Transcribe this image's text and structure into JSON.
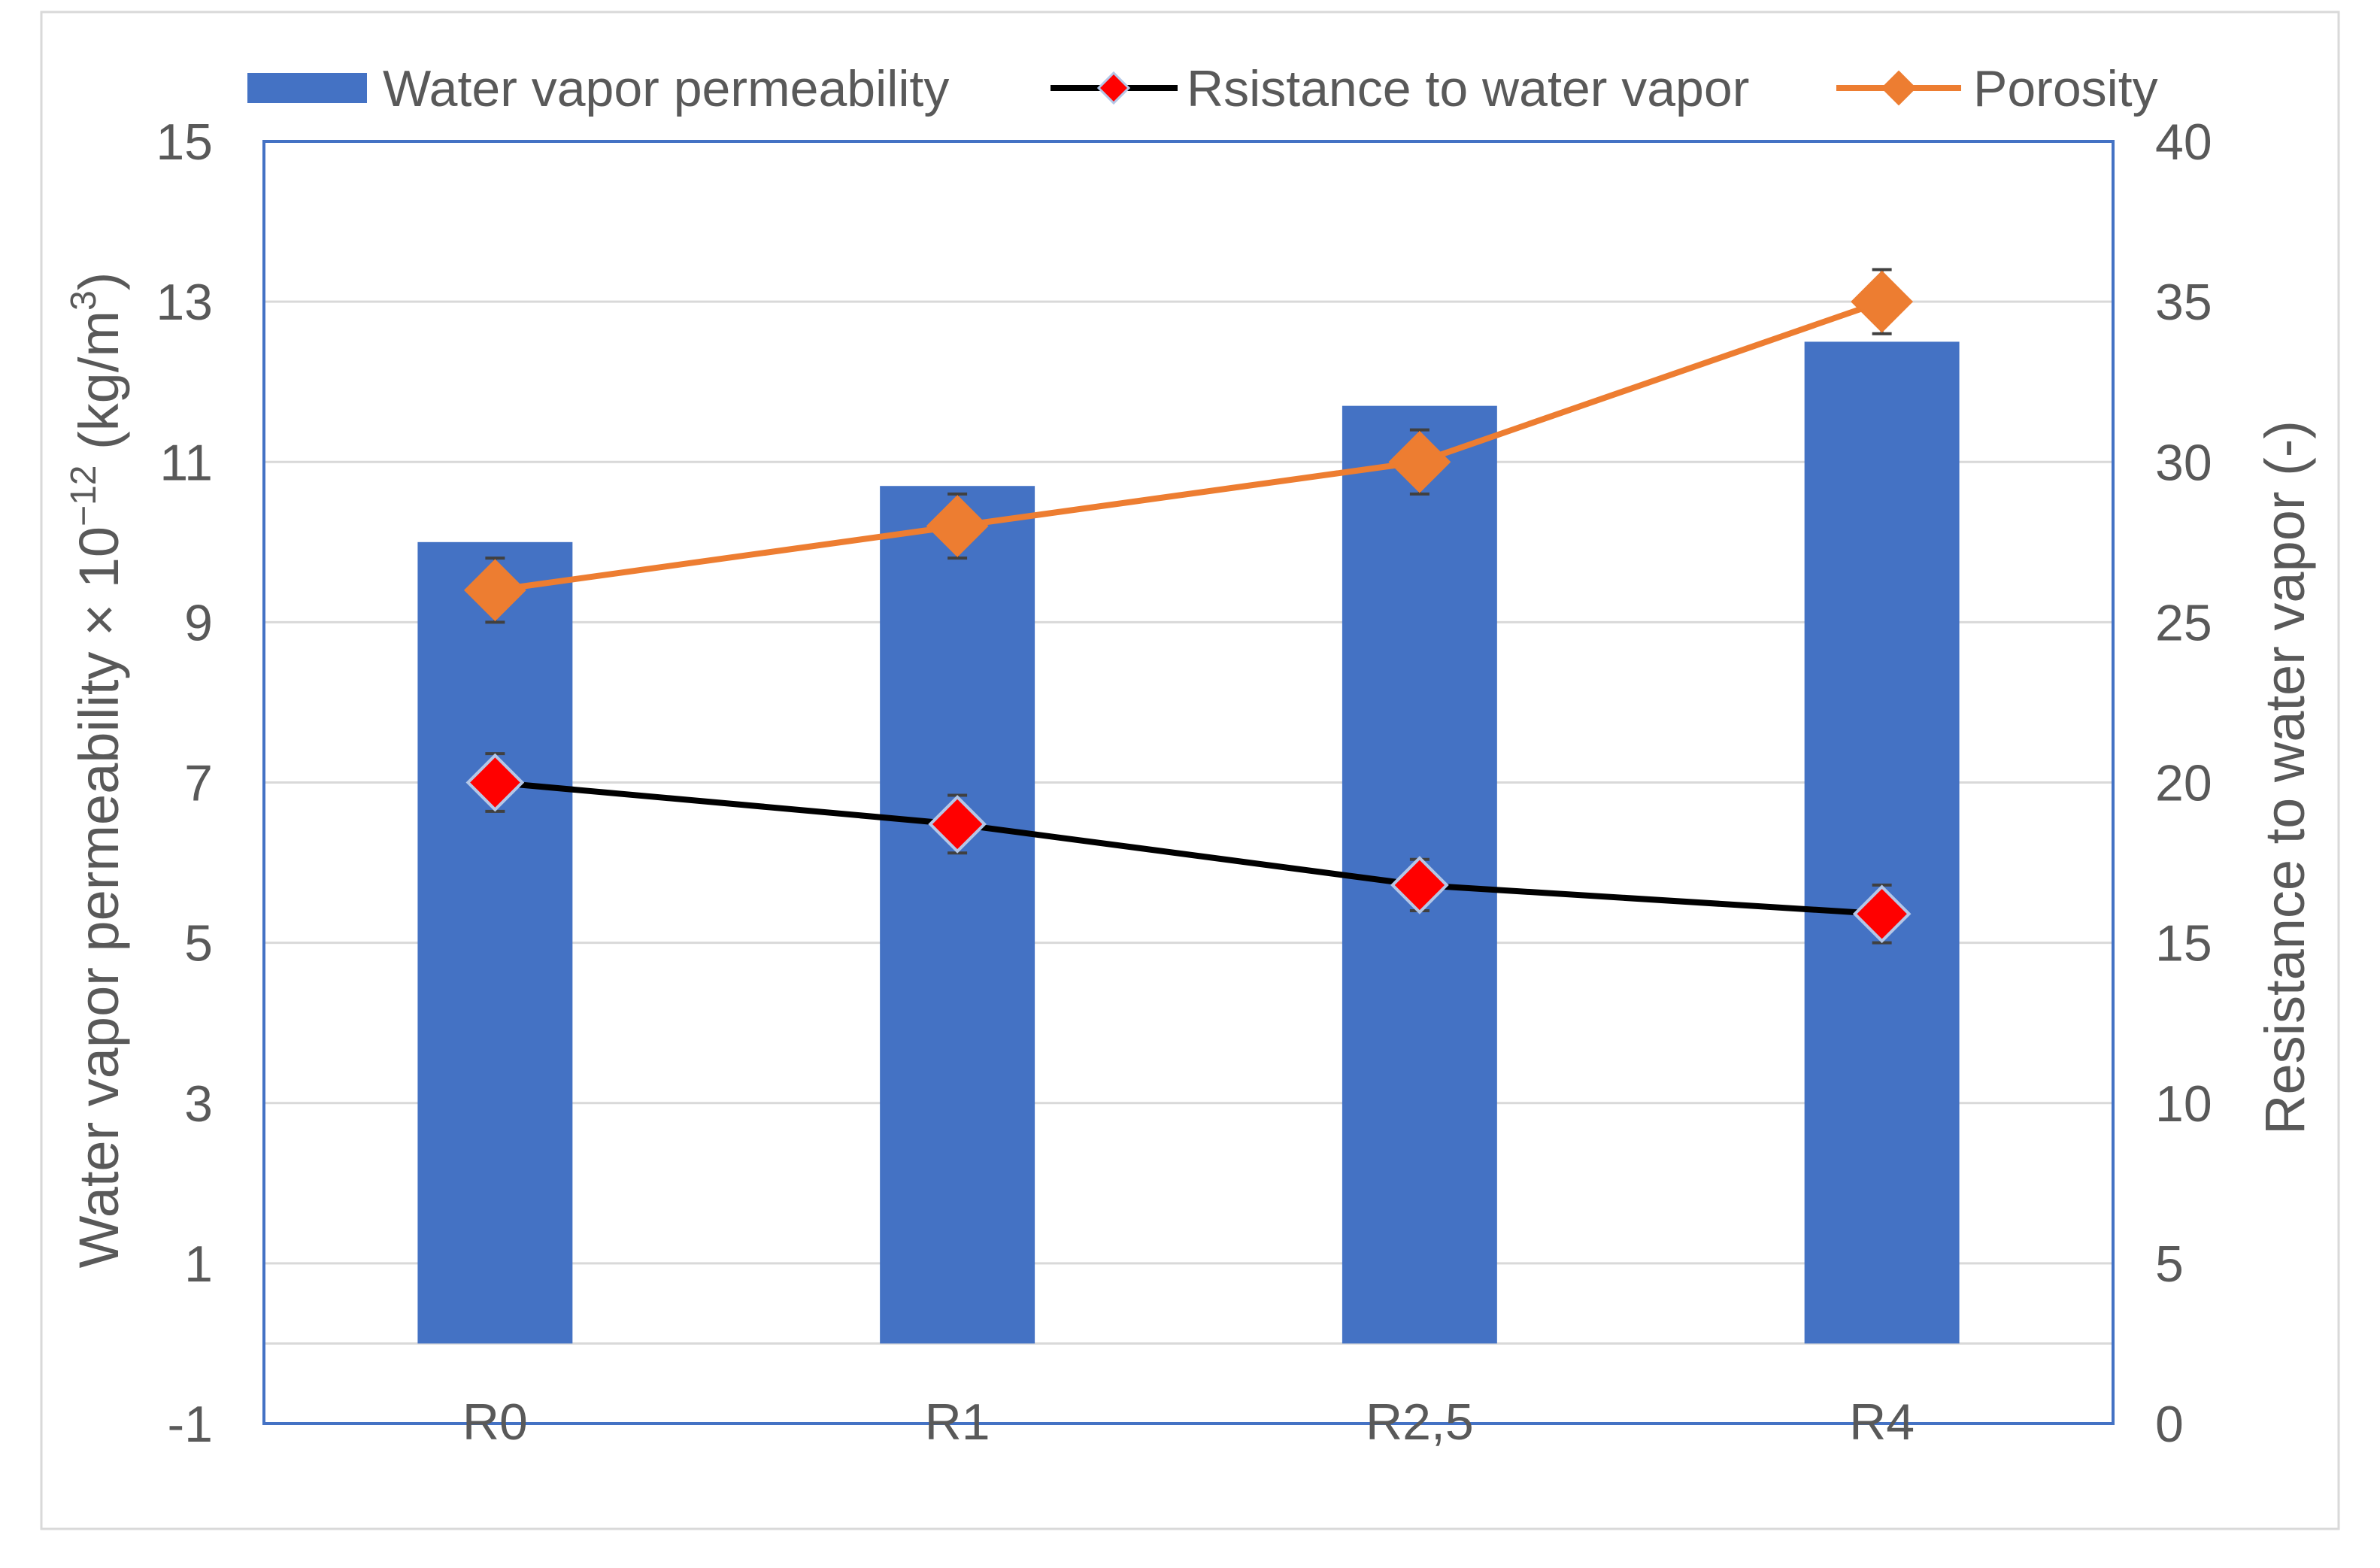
{
  "chart_data": {
    "type": "bar",
    "categories": [
      "R0",
      "R1",
      "R2,5",
      "R4"
    ],
    "series": [
      {
        "name": "Water vapor permeability",
        "type": "bar",
        "secondary_axis": false,
        "values": [
          10.0,
          10.7,
          11.7,
          12.5
        ],
        "color": "#4472C4"
      },
      {
        "name": "Rsistance to water vapor",
        "type": "line",
        "secondary_axis": true,
        "values": [
          20.0,
          18.7,
          16.8,
          15.9
        ],
        "error": [
          0.9,
          0.9,
          0.8,
          0.9
        ],
        "color": "#000000",
        "marker": "diamond",
        "marker_color": "#FF0000",
        "marker_edge_color": "#B4C7E7"
      },
      {
        "name": "Porosity",
        "type": "line",
        "secondary_axis": true,
        "values": [
          26.0,
          28.0,
          30.0,
          35.0
        ],
        "error": [
          1.0,
          1.0,
          1.0,
          1.0
        ],
        "color": "#ED7D31",
        "marker": "diamond",
        "marker_color": "#ED7D31"
      }
    ],
    "y_left": {
      "label_parts": [
        {
          "text": "Water vapor permeability × 10",
          "sup": false
        },
        {
          "text": "−12",
          "sup": true
        },
        {
          "text": " (kg/m",
          "sup": false
        },
        {
          "text": "3",
          "sup": true
        },
        {
          "text": ")",
          "sup": false
        }
      ],
      "ylim": [
        -1,
        15
      ],
      "ticks": [
        -1,
        1,
        3,
        5,
        7,
        9,
        11,
        13,
        15
      ]
    },
    "y_right": {
      "label": "Resistance to water vapor (-)",
      "ylim": [
        0,
        40
      ],
      "ticks": [
        0,
        5,
        10,
        15,
        20,
        25,
        30,
        35,
        40
      ]
    },
    "bar_baseline": 0,
    "error_bar_color": "#404040",
    "grid": true,
    "legend": "top"
  }
}
